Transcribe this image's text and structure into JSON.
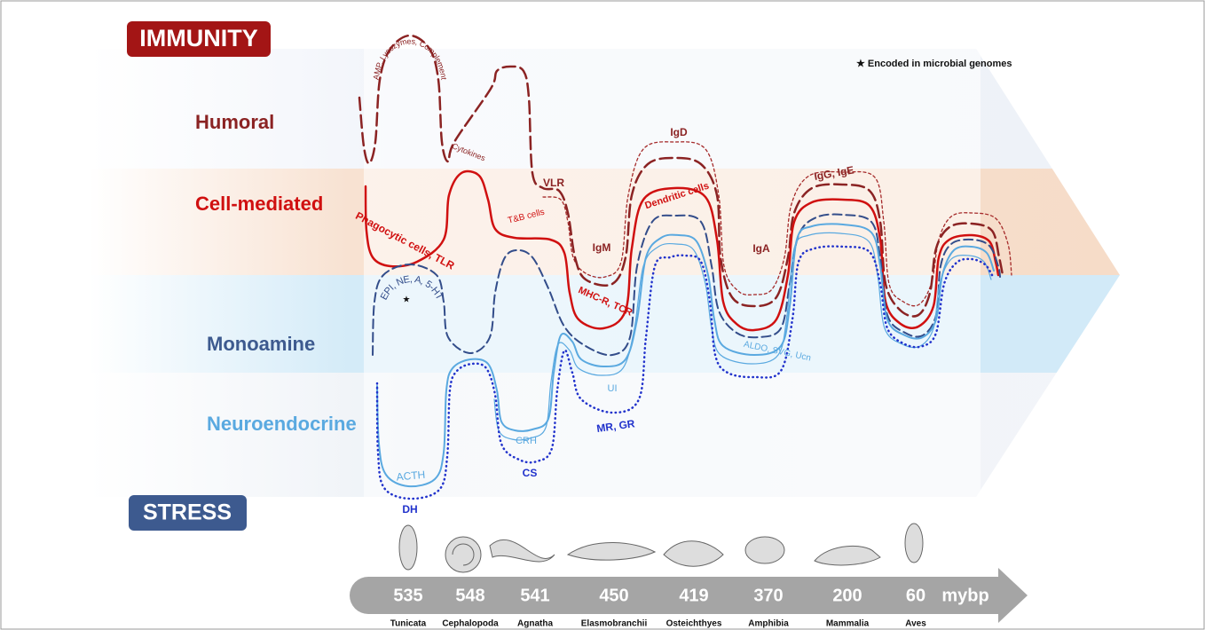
{
  "header": {
    "immunity": "IMMUNITY",
    "stress": "STRESS",
    "note": "★ Encoded in microbial genomes"
  },
  "rows": [
    "Humoral",
    "Cell-mediated",
    "Monoamine",
    "Neuroendocrine"
  ],
  "curve_labels": [
    "AMP, Lysozymes, Complement",
    "Cytokines",
    "VLR",
    "IgD",
    "IgG, IgE",
    "Dendritic cells",
    "T&B cells",
    "IgM",
    "IgA",
    "Phagocytic cells, TLR",
    "MHC-R, TCR",
    "EPI, NE, A, 5-HT",
    "★",
    "ALDO, SVG, Ucn",
    "UI",
    "MR, GR",
    "CRH",
    "CS",
    "ACTH",
    "DH"
  ],
  "timeline": {
    "ages": [
      535,
      548,
      541,
      450,
      419,
      370,
      200,
      60
    ],
    "unit": "mybp",
    "taxa": [
      "Tunicata",
      "Cephalopoda",
      "Agnatha",
      "Elasmobranchii",
      "Osteichthyes",
      "Amphibia",
      "Mammalia",
      "Aves"
    ]
  }
}
